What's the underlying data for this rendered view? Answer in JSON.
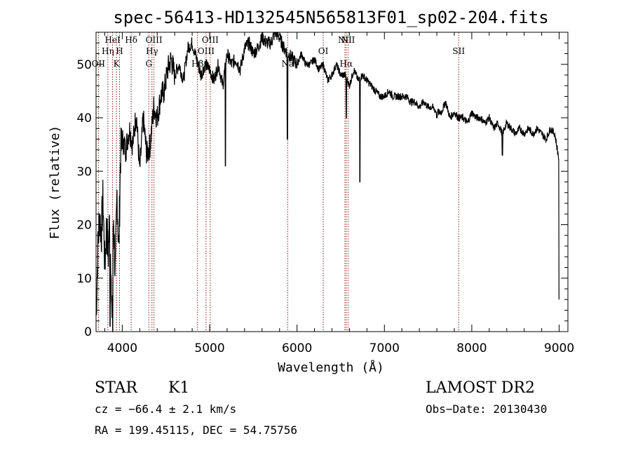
{
  "chart_data": {
    "type": "line",
    "title": "spec-56413-HD132545N565813F01_sp02-204.fits",
    "xlabel": "Wavelength (Å)",
    "ylabel": "Flux (relative)",
    "xlim": [
      3700,
      9100
    ],
    "ylim": [
      0,
      56
    ],
    "x_ticks": [
      4000,
      5000,
      6000,
      7000,
      8000,
      9000
    ],
    "y_ticks": [
      0,
      10,
      20,
      30,
      40,
      50
    ],
    "series": [
      {
        "x": [
          3700,
          3720,
          3740,
          3760,
          3780,
          3800,
          3820,
          3840,
          3860,
          3880,
          3900,
          3920,
          3940,
          3960,
          3980,
          4000,
          4040,
          4080,
          4120,
          4160,
          4200,
          4240,
          4280,
          4320,
          4360,
          4400,
          4440,
          4480,
          4520,
          4560,
          4600,
          4650,
          4700,
          4750,
          4800,
          4850,
          4900,
          4950,
          5000,
          5050,
          5100,
          5150,
          5200,
          5250,
          5300,
          5350,
          5400,
          5450,
          5500,
          5550,
          5600,
          5650,
          5700,
          5750,
          5800,
          5850,
          5900,
          5950,
          6000,
          6050,
          6100,
          6150,
          6200,
          6250,
          6300,
          6350,
          6400,
          6450,
          6500,
          6550,
          6600,
          6650,
          6700,
          6750,
          6800,
          6850,
          6900,
          6950,
          7000,
          7050,
          7100,
          7150,
          7200,
          7250,
          7300,
          7350,
          7400,
          7450,
          7500,
          7550,
          7600,
          7650,
          7700,
          7750,
          7800,
          7850,
          7900,
          7950,
          8000,
          8050,
          8100,
          8150,
          8200,
          8250,
          8300,
          8350,
          8400,
          8450,
          8500,
          8550,
          8600,
          8650,
          8700,
          8750,
          8800,
          8850,
          8900,
          8950,
          9000
        ],
        "y": [
          3,
          15,
          22,
          18,
          25,
          12,
          20,
          14,
          24,
          1,
          22,
          10,
          26,
          15,
          33,
          36,
          34,
          38,
          35,
          41,
          30,
          40,
          33,
          35,
          42,
          40,
          44,
          45,
          49,
          51,
          48,
          50,
          47,
          53,
          54,
          51,
          48,
          50,
          49,
          47,
          50,
          46,
          52,
          50,
          51,
          49,
          53,
          54,
          52,
          53,
          55,
          54,
          54,
          56,
          55,
          53,
          52,
          51,
          50,
          52,
          50,
          50,
          51,
          49,
          50,
          47,
          48,
          50,
          48,
          48,
          46,
          49,
          47,
          48,
          47,
          46,
          45,
          44,
          44,
          45,
          44,
          44,
          44,
          44,
          43,
          43,
          42,
          43,
          42,
          42,
          41,
          41,
          43,
          40,
          41,
          40,
          40,
          39,
          41,
          40,
          40,
          39,
          40,
          38,
          39,
          37,
          39,
          38,
          37,
          38,
          37,
          38,
          37,
          38,
          37,
          36,
          38,
          37,
          32
        ]
      }
    ],
    "absorption_dips": [
      {
        "x": 3860,
        "y": 1
      },
      {
        "x": 3890,
        "y": 0
      },
      {
        "x": 5180,
        "y": 31
      },
      {
        "x": 5890,
        "y": 36
      },
      {
        "x": 6563,
        "y": 40
      },
      {
        "x": 6720,
        "y": 28
      },
      {
        "x": 7600,
        "y": 40
      },
      {
        "x": 8350,
        "y": 33
      },
      {
        "x": 9000,
        "y": 6
      }
    ],
    "spectral_lines": [
      {
        "x": 3727,
        "label": "OII",
        "row": 3
      },
      {
        "x": 3835,
        "label": "Hη",
        "row": 2
      },
      {
        "x": 3889,
        "label": "HeI",
        "row": 1
      },
      {
        "x": 3934,
        "label": "K",
        "row": 3
      },
      {
        "x": 3969,
        "label": "H",
        "row": 2
      },
      {
        "x": 4102,
        "label": "Hδ",
        "row": 1
      },
      {
        "x": 4304,
        "label": "G",
        "row": 3
      },
      {
        "x": 4340,
        "label": "Hγ",
        "row": 2
      },
      {
        "x": 4363,
        "label": "OIII",
        "row": 1
      },
      {
        "x": 4861,
        "label": "Hβ",
        "row": 3
      },
      {
        "x": 4959,
        "label": "OIII",
        "row": 2
      },
      {
        "x": 5007,
        "label": "OIII",
        "row": 1
      },
      {
        "x": 5893,
        "label": "Na",
        "row": 3
      },
      {
        "x": 6300,
        "label": "OI",
        "row": 2
      },
      {
        "x": 6548,
        "label": "NII",
        "row": 1
      },
      {
        "x": 6563,
        "label": "Hα",
        "row": 3
      },
      {
        "x": 6584,
        "label": "NII",
        "row": 1
      },
      {
        "x": 7850,
        "label": "SII",
        "row": 2
      }
    ],
    "grid": false,
    "line_color": "#000000",
    "marker_line_color": "#8b1a1a"
  },
  "info": {
    "object_class": "STAR",
    "subclass": "K1",
    "survey": "LAMOST DR2",
    "cz": "cz = −66.4 ± 2.1 km/s",
    "obs_date": "Obs−Date: 20130430",
    "coords": "RA = 199.45115, DEC =  54.75756"
  }
}
